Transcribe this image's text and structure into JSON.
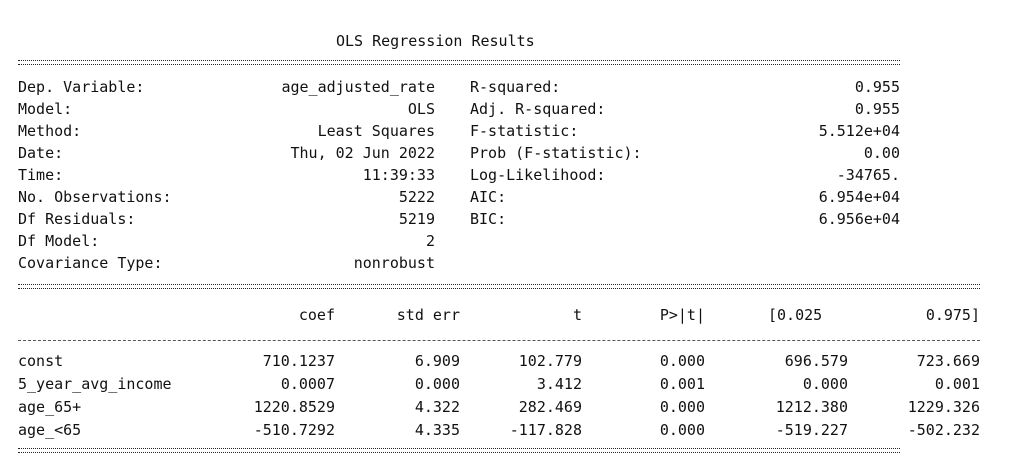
{
  "title": "OLS Regression Results",
  "summary_left": [
    {
      "label": "Dep. Variable:",
      "value": "age_adjusted_rate"
    },
    {
      "label": "Model:",
      "value": "OLS"
    },
    {
      "label": "Method:",
      "value": "Least Squares"
    },
    {
      "label": "Date:",
      "value": "Thu, 02 Jun 2022"
    },
    {
      "label": "Time:",
      "value": "11:39:33"
    },
    {
      "label": "No. Observations:",
      "value": "5222"
    },
    {
      "label": "Df Residuals:",
      "value": "5219"
    },
    {
      "label": "Df Model:",
      "value": "2"
    },
    {
      "label": "Covariance Type:",
      "value": "nonrobust"
    }
  ],
  "summary_right": [
    {
      "label": "R-squared:",
      "value": "0.955"
    },
    {
      "label": "Adj. R-squared:",
      "value": "0.955"
    },
    {
      "label": "F-statistic:",
      "value": "5.512e+04"
    },
    {
      "label": "Prob (F-statistic):",
      "value": "0.00"
    },
    {
      "label": "Log-Likelihood:",
      "value": "-34765."
    },
    {
      "label": "AIC:",
      "value": "6.954e+04"
    },
    {
      "label": "BIC:",
      "value": "6.956e+04"
    }
  ],
  "coef_headers": [
    "coef",
    "std err",
    "t",
    "P>|t|",
    "[0.025",
    "0.975]"
  ],
  "coef_rows": [
    {
      "name": "const",
      "values": [
        "710.1237",
        "6.909",
        "102.779",
        "0.000",
        "696.579",
        "723.669"
      ]
    },
    {
      "name": "5_year_avg_income",
      "values": [
        "0.0007",
        "0.000",
        "3.412",
        "0.001",
        "0.000",
        "0.001"
      ]
    },
    {
      "name": "age_65+",
      "values": [
        "1220.8529",
        "4.322",
        "282.469",
        "0.000",
        "1212.380",
        "1229.326"
      ]
    },
    {
      "name": "age_<65",
      "values": [
        "-510.7292",
        "4.335",
        "-117.828",
        "0.000",
        "-519.227",
        "-502.232"
      ]
    }
  ]
}
